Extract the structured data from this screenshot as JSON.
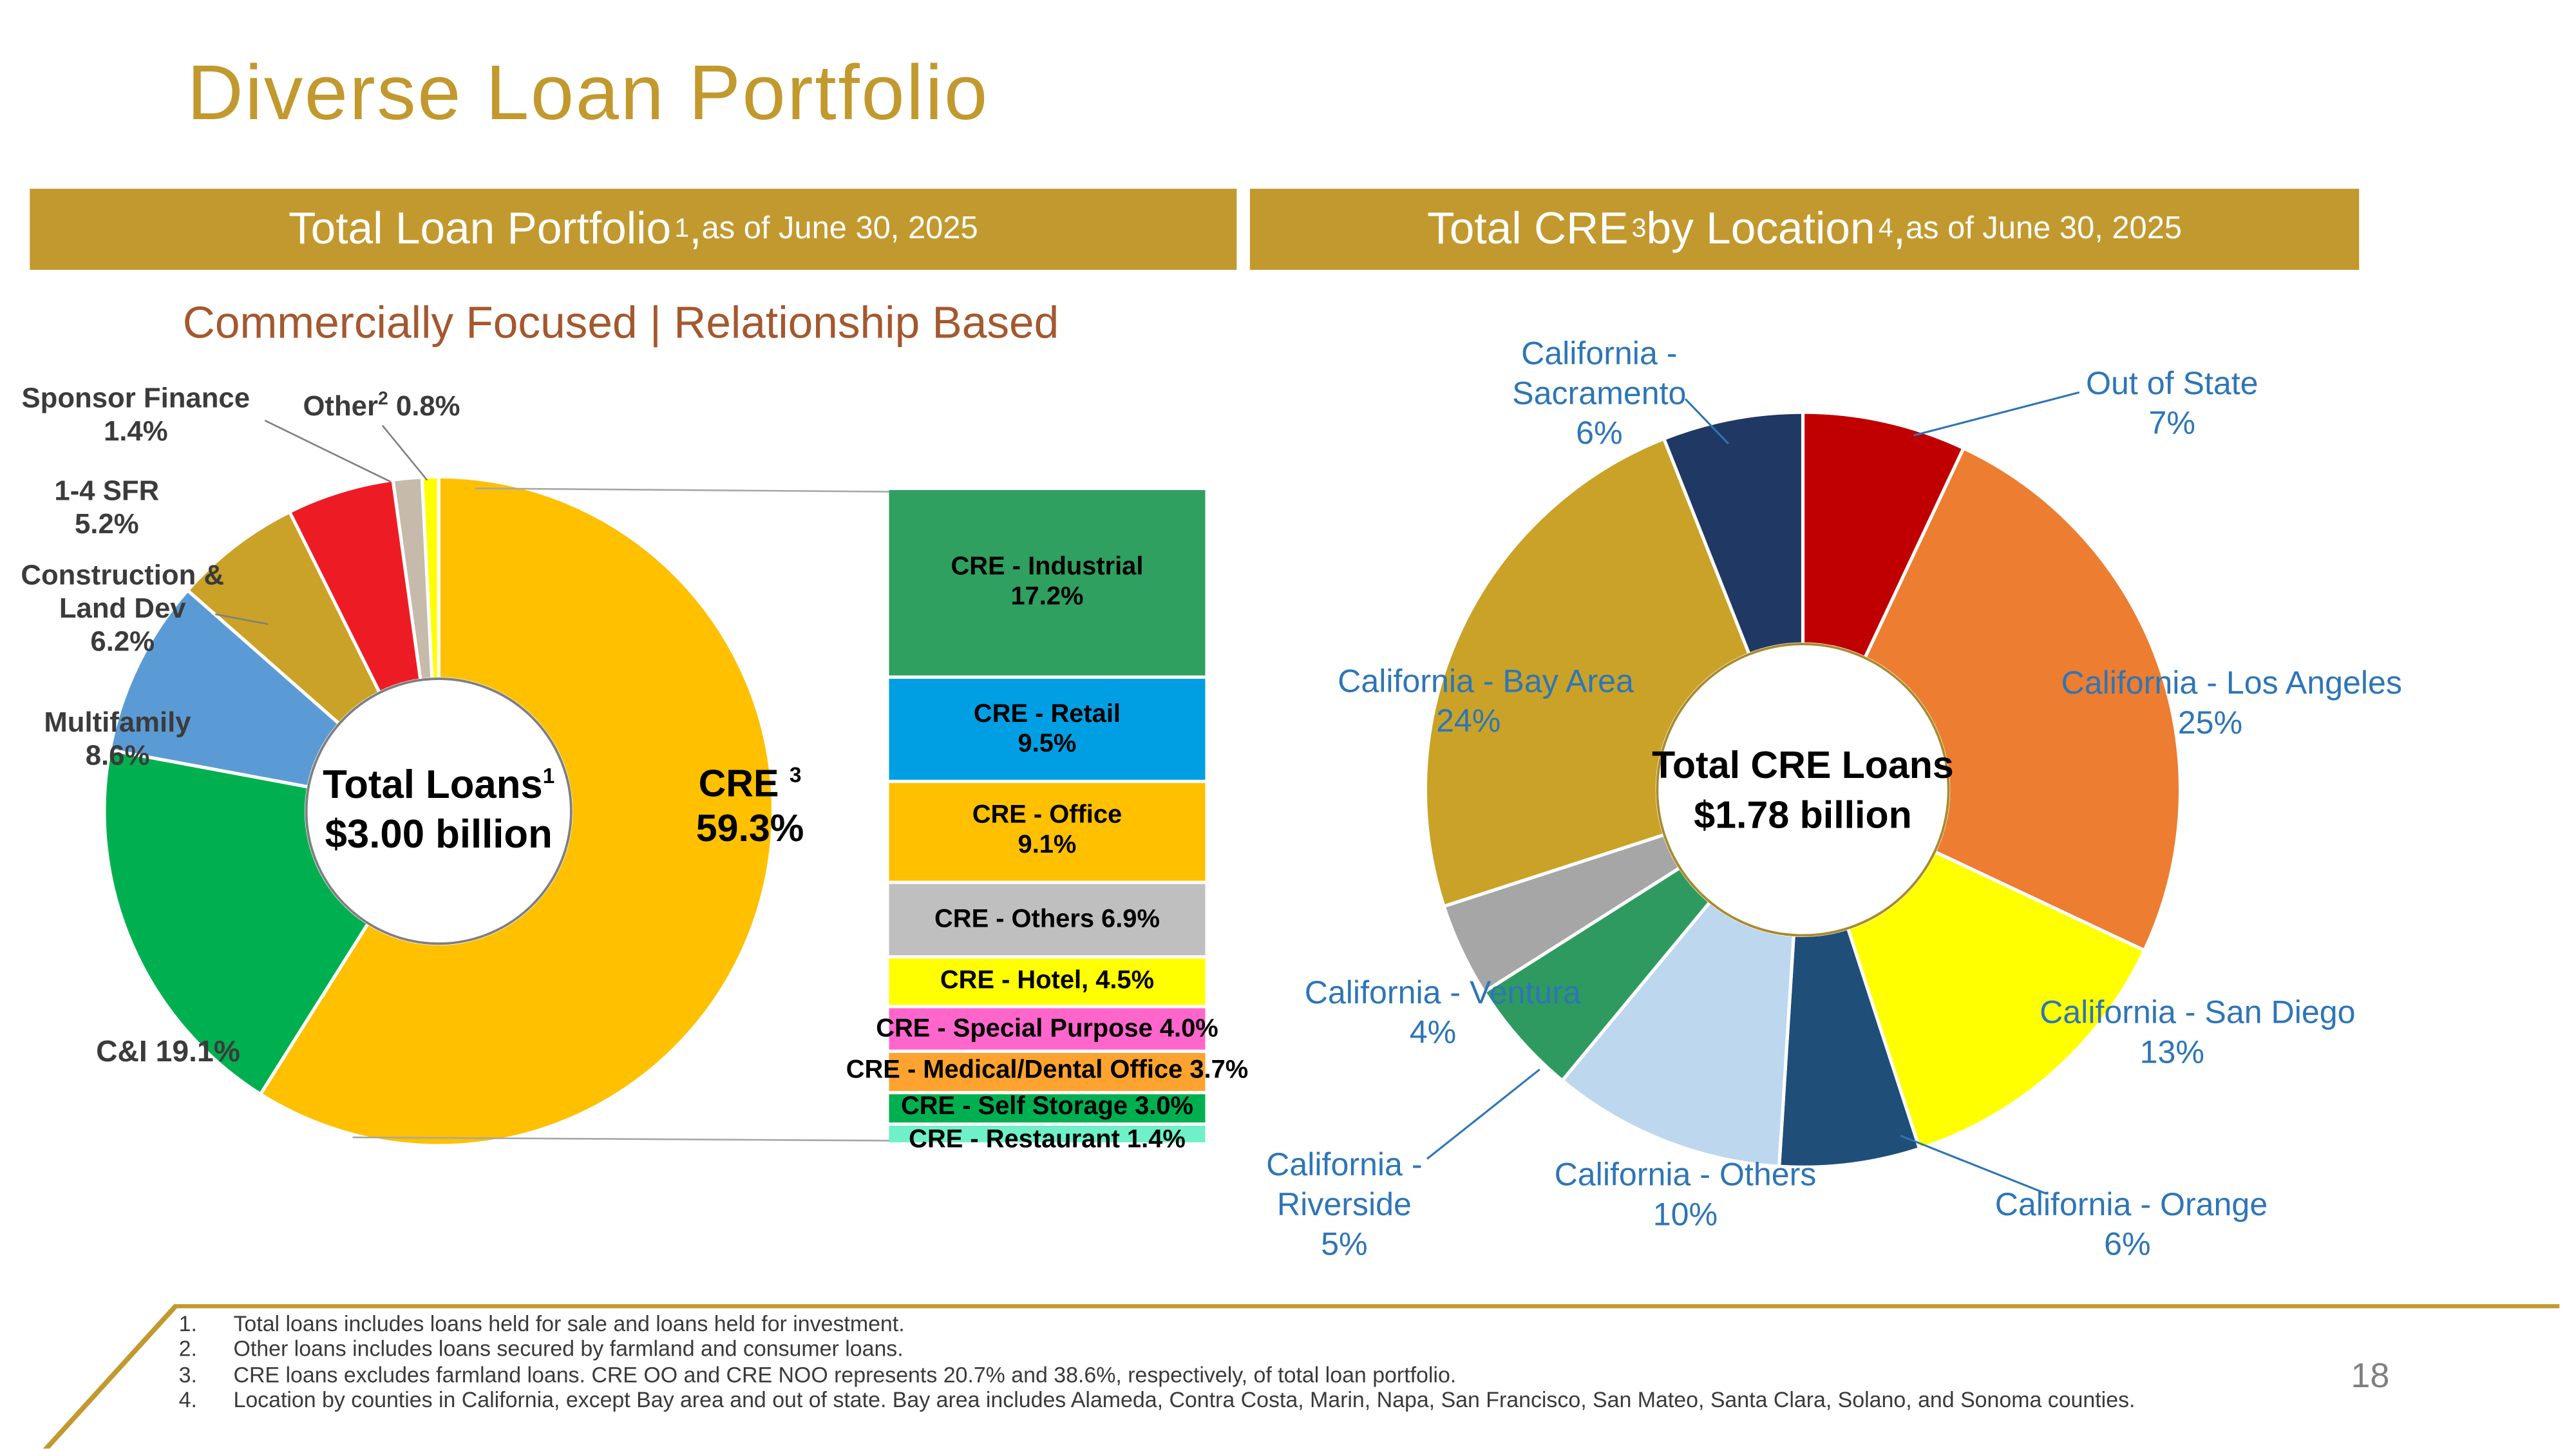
{
  "slide": {
    "title": "Diverse Loan Portfolio",
    "subtitle": "Commercially Focused | Relationship Based",
    "page_number": "18",
    "colors": {
      "gold": "#C2992E",
      "label_blue": "#2E75B6",
      "subtitle_brown": "#A4582E"
    },
    "headers": {
      "left": {
        "title": "Total Loan Portfolio",
        "sup": "1",
        "comma": ",",
        "date": " as of June 30, 2025"
      },
      "right": {
        "t1": "Total CRE",
        "sup_a": "3",
        "t2": " by Location",
        "sup_b": "4",
        "comma": ",",
        "date": " as of June 30, 2025"
      }
    },
    "footnotes": [
      {
        "num": "1.",
        "text": "Total loans includes loans held for sale and loans held for investment."
      },
      {
        "num": "2.",
        "text": "Other loans includes loans secured by farmland and consumer loans."
      },
      {
        "num": "3.",
        "text": "CRE loans excludes farmland loans. CRE OO and CRE NOO represents 20.7% and 38.6%, respectively, of total loan portfolio."
      },
      {
        "num": "4.",
        "text": "Location by counties in California, except Bay area and out of state.  Bay area includes Alameda, Contra Costa, Marin, Napa, San Francisco, San Mateo, Santa Clara, Solano, and Sonoma counties."
      }
    ]
  },
  "chart_data": [
    {
      "id": "total-loan-portfolio",
      "type": "pie",
      "title": "Total Loan Portfolio, as of June 30, 2025",
      "units": "% of total loans",
      "center_label": {
        "line1": "Total Loans",
        "sup": "1",
        "line2": "$3.00 billion"
      },
      "segments": [
        {
          "label": "CRE",
          "sup": "3",
          "pct": "59.3%",
          "value": 59.3,
          "color": "#FFC000"
        },
        {
          "label": "C&I",
          "pct": "19.1%",
          "value": 19.1,
          "color": "#00B050"
        },
        {
          "label": "Multifamily",
          "pct": "8.6%",
          "value": 8.6,
          "color": "#5B9BD5"
        },
        {
          "label": "Construction & Land Dev",
          "pct": "6.2%",
          "value": 6.2,
          "color": "#C9A227"
        },
        {
          "label": "1-4 SFR",
          "pct": "5.2%",
          "value": 5.2,
          "color": "#ED1C24"
        },
        {
          "label": "Sponsor Finance",
          "pct": "1.4%",
          "value": 1.4,
          "color": "#C6BAAB"
        },
        {
          "label": "Other",
          "sup": "2",
          "pct": "0.8%",
          "value": 0.8,
          "color": "#FFFF00"
        }
      ]
    },
    {
      "id": "cre-composition",
      "type": "bar",
      "title": "CRE composition (% of total loans)",
      "segments": [
        {
          "lines": [
            "CRE - Industrial",
            "17.2%"
          ],
          "value": 17.2,
          "color": "#2FA05F"
        },
        {
          "lines": [
            "CRE - Retail",
            "9.5%"
          ],
          "value": 9.5,
          "color": "#009FE3"
        },
        {
          "lines": [
            "CRE - Office",
            "9.1%"
          ],
          "value": 9.1,
          "color": "#FFC000"
        },
        {
          "lines": [
            "CRE - Others 6.9%"
          ],
          "value": 6.9,
          "color": "#BFBFBF"
        },
        {
          "lines": [
            "CRE - Hotel, 4.5%"
          ],
          "value": 4.5,
          "color": "#FFFF00"
        },
        {
          "lines": [
            "CRE - Special Purpose 4.0%"
          ],
          "value": 4.0,
          "color": "#FF66CC"
        },
        {
          "lines": [
            "CRE - Medical/Dental Office 3.7%"
          ],
          "value": 3.7,
          "color": "#FFA330"
        },
        {
          "lines": [
            "CRE - Self Storage 3.0%"
          ],
          "value": 3.0,
          "color": "#00B050"
        },
        {
          "lines": [
            "CRE - Restaurant 1.4%"
          ],
          "value": 1.4,
          "color": "#6FF0C8"
        }
      ]
    },
    {
      "id": "total-cre-by-location",
      "type": "pie",
      "title": "Total CRE by Location, as of June 30, 2025",
      "units": "% of total CRE loans",
      "center_label": {
        "line1": "Total CRE Loans",
        "line2": "$1.78 billion"
      },
      "segments": [
        {
          "label": "Out of State",
          "pct": "7%",
          "value": 7,
          "color": "#C00000"
        },
        {
          "label": "California - Los Angeles",
          "pct": "25%",
          "value": 25,
          "color": "#ED7D31"
        },
        {
          "label": "California - San Diego",
          "pct": "13%",
          "value": 13,
          "color": "#FFFF00"
        },
        {
          "label": "California - Orange",
          "pct": "6%",
          "value": 6,
          "color": "#1F4E79"
        },
        {
          "label": "California - Others",
          "pct": "10%",
          "value": 10,
          "color": "#BDD7EE"
        },
        {
          "label": "California - Riverside",
          "pct": "5%",
          "value": 5,
          "color": "#2E9A60"
        },
        {
          "label": "California - Ventura",
          "pct": "4%",
          "value": 4,
          "color": "#A6A6A6"
        },
        {
          "label": "California - Bay Area",
          "pct": "24%",
          "value": 24,
          "color": "#C9A227"
        },
        {
          "label": "California - Sacramento",
          "pct": "6%",
          "value": 6,
          "color": "#203864"
        }
      ]
    }
  ]
}
